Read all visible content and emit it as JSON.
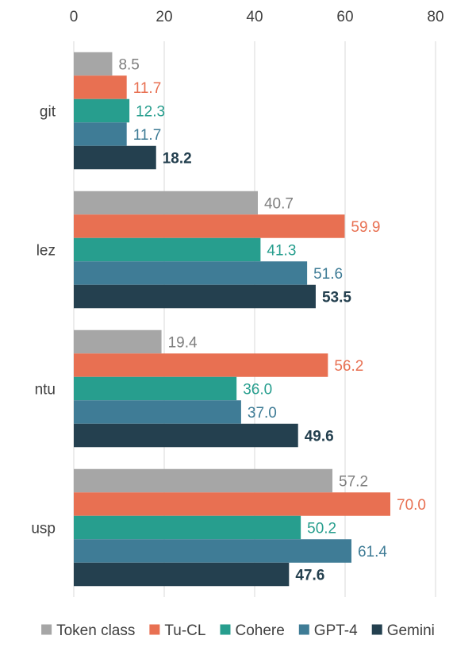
{
  "chart_data": {
    "type": "bar",
    "orientation": "horizontal",
    "title": "",
    "xlabel": "",
    "ylabel": "",
    "xlim": [
      0,
      80
    ],
    "ticks": [
      "0",
      "20",
      "40",
      "60",
      "80"
    ],
    "tick_values": [
      0,
      20,
      40,
      60,
      80
    ],
    "x_axis_position": "top",
    "grid": true,
    "legend_position": "bottom",
    "categories": [
      "git",
      "lez",
      "ntu",
      "usp"
    ],
    "series": [
      {
        "name": "Token class",
        "color": "#a6a6a6",
        "label_color": "#7f7f7f",
        "values": [
          8.5,
          40.7,
          19.4,
          57.2
        ],
        "labels": [
          "8.5",
          "40.7",
          "19.4",
          "57.2"
        ]
      },
      {
        "name": "Tu-CL",
        "color": "#e87052",
        "label_color": "#e87052",
        "values": [
          11.7,
          59.9,
          56.2,
          70.0
        ],
        "labels": [
          "11.7",
          "59.9",
          "56.2",
          "70.0"
        ]
      },
      {
        "name": "Cohere",
        "color": "#279e8e",
        "label_color": "#279e8e",
        "values": [
          12.3,
          41.3,
          36.0,
          50.2
        ],
        "labels": [
          "12.3",
          "41.3",
          "36.0",
          "50.2"
        ]
      },
      {
        "name": "GPT-4",
        "color": "#3f7c96",
        "label_color": "#3f7c96",
        "values": [
          11.7,
          51.6,
          37.0,
          61.4
        ],
        "labels": [
          "11.7",
          "51.6",
          "37.0",
          "61.4"
        ]
      },
      {
        "name": "Gemini",
        "color": "#24404f",
        "label_color": "#24404f",
        "values": [
          18.2,
          53.5,
          49.6,
          47.6
        ],
        "labels": [
          "18.2",
          "53.5",
          "49.6",
          "47.6"
        ]
      }
    ]
  }
}
